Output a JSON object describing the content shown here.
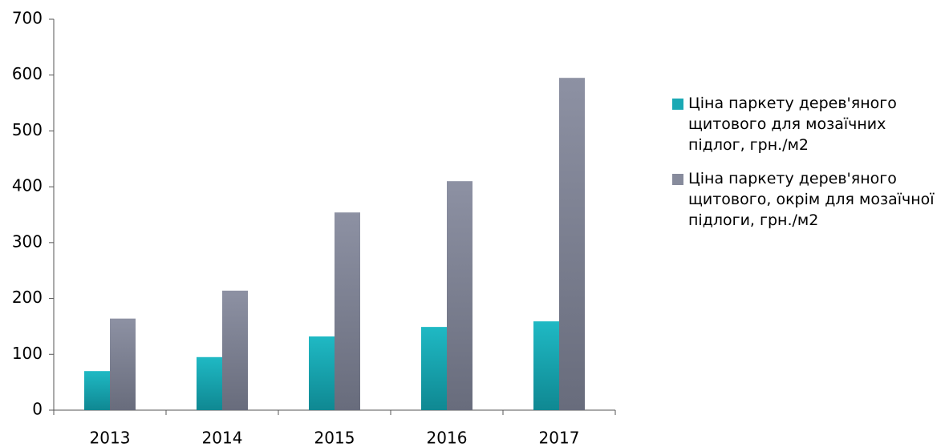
{
  "chart_data": {
    "type": "bar",
    "categories": [
      "2013",
      "2014",
      "2015",
      "2016",
      "2017"
    ],
    "series": [
      {
        "name": "Ціна паркету дерев'яного щитового для мозаїчних підлог, грн./м2",
        "color": "#1aa9b4",
        "values": [
          70,
          95,
          132,
          149,
          159
        ]
      },
      {
        "name": "Ціна паркету дерев'яного щитового, окрім для мозаїчної підлоги, грн./м2",
        "color": "#878b9c",
        "values": [
          164,
          214,
          354,
          410,
          595
        ]
      }
    ],
    "ylim": [
      0,
      700
    ],
    "yticks": [
      0,
      100,
      200,
      300,
      400,
      500,
      600,
      700
    ],
    "grid": false,
    "legend": "right"
  }
}
